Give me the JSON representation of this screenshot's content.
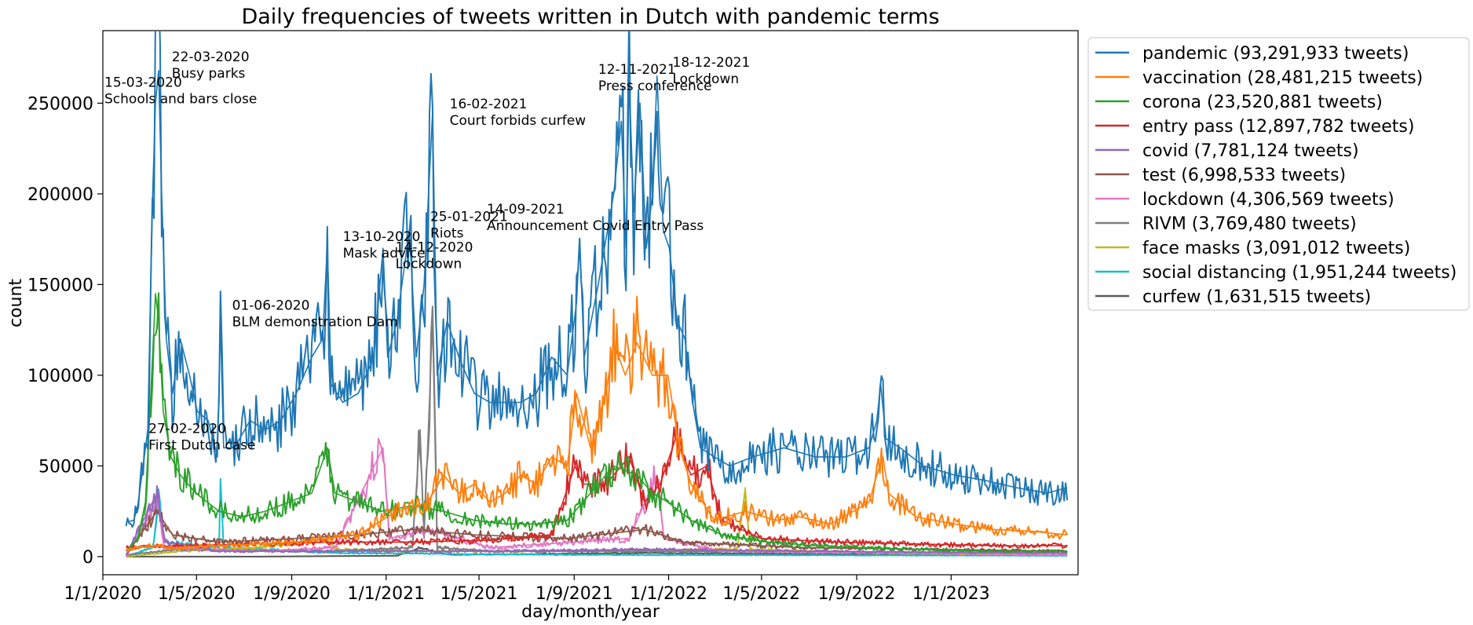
{
  "chart_data": {
    "type": "line",
    "title": "Daily frequencies of tweets written in Dutch with pandemic terms",
    "xlabel": "day/month/year",
    "ylabel": "count",
    "x_range_days": [
      0,
      1260
    ],
    "ylim": [
      -10000,
      290000
    ],
    "x_ticks": [
      {
        "day": 0,
        "label": "1/1/2020"
      },
      {
        "day": 121,
        "label": "1/5/2020"
      },
      {
        "day": 244,
        "label": "1/9/2020"
      },
      {
        "day": 366,
        "label": "1/1/2021"
      },
      {
        "day": 486,
        "label": "1/5/2021"
      },
      {
        "day": 609,
        "label": "1/9/2021"
      },
      {
        "day": 731,
        "label": "1/1/2022"
      },
      {
        "day": 851,
        "label": "1/5/2022"
      },
      {
        "day": 974,
        "label": "1/9/2022"
      },
      {
        "day": 1096,
        "label": "1/1/2023"
      }
    ],
    "y_ticks": [
      0,
      50000,
      100000,
      150000,
      200000,
      250000
    ],
    "x_start_day": 30,
    "x_end_day": 1246,
    "series": [
      {
        "name": "pandemic (93,291,933 tweets)",
        "color": "#1f77b4",
        "anchors": [
          [
            30,
            19000
          ],
          [
            40,
            20000
          ],
          [
            45,
            28000
          ],
          [
            52,
            50000
          ],
          [
            58,
            70000
          ],
          [
            64,
            195000
          ],
          [
            68,
            250000
          ],
          [
            72,
            268000
          ],
          [
            76,
            200000
          ],
          [
            82,
            120000
          ],
          [
            90,
            90000
          ],
          [
            100,
            120000
          ],
          [
            112,
            100000
          ],
          [
            122,
            80000
          ],
          [
            136,
            75000
          ],
          [
            148,
            55000
          ],
          [
            152,
            130000
          ],
          [
            156,
            60000
          ],
          [
            170,
            60000
          ],
          [
            190,
            75000
          ],
          [
            210,
            70000
          ],
          [
            230,
            75000
          ],
          [
            250,
            90000
          ],
          [
            270,
            110000
          ],
          [
            284,
            120000
          ],
          [
            290,
            172000
          ],
          [
            295,
            95000
          ],
          [
            310,
            85000
          ],
          [
            330,
            90000
          ],
          [
            350,
            110000
          ],
          [
            362,
            170000
          ],
          [
            368,
            110000
          ],
          [
            380,
            130000
          ],
          [
            396,
            180000
          ],
          [
            405,
            110000
          ],
          [
            415,
            150000
          ],
          [
            426,
            245000
          ],
          [
            432,
            100000
          ],
          [
            445,
            130000
          ],
          [
            460,
            110000
          ],
          [
            480,
            90000
          ],
          [
            500,
            85000
          ],
          [
            520,
            85000
          ],
          [
            540,
            85000
          ],
          [
            560,
            90000
          ],
          [
            580,
            110000
          ],
          [
            600,
            100000
          ],
          [
            612,
            140000
          ],
          [
            616,
            175000
          ],
          [
            622,
            110000
          ],
          [
            640,
            150000
          ],
          [
            660,
            200000
          ],
          [
            670,
            240000
          ],
          [
            676,
            170000
          ],
          [
            680,
            262000
          ],
          [
            686,
            190000
          ],
          [
            694,
            250000
          ],
          [
            702,
            170000
          ],
          [
            710,
            200000
          ],
          [
            716,
            265000
          ],
          [
            724,
            180000
          ],
          [
            732,
            170000
          ],
          [
            742,
            130000
          ],
          [
            752,
            120000
          ],
          [
            762,
            85000
          ],
          [
            772,
            60000
          ],
          [
            790,
            55000
          ],
          [
            810,
            50000
          ],
          [
            840,
            55000
          ],
          [
            880,
            60000
          ],
          [
            920,
            55000
          ],
          [
            960,
            55000
          ],
          [
            990,
            60000
          ],
          [
            1000,
            75000
          ],
          [
            1005,
            95000
          ],
          [
            1012,
            65000
          ],
          [
            1030,
            60000
          ],
          [
            1060,
            50000
          ],
          [
            1100,
            45000
          ],
          [
            1140,
            42000
          ],
          [
            1180,
            38000
          ],
          [
            1220,
            35000
          ],
          [
            1246,
            38000
          ]
        ]
      },
      {
        "name": "vaccination (28,481,215 tweets)",
        "color": "#ff7f0e",
        "anchors": [
          [
            30,
            4000
          ],
          [
            60,
            6000
          ],
          [
            90,
            5000
          ],
          [
            150,
            6000
          ],
          [
            250,
            8000
          ],
          [
            330,
            12000
          ],
          [
            380,
            25000
          ],
          [
            420,
            30000
          ],
          [
            440,
            45000
          ],
          [
            460,
            35000
          ],
          [
            480,
            40000
          ],
          [
            500,
            30000
          ],
          [
            520,
            35000
          ],
          [
            540,
            45000
          ],
          [
            560,
            40000
          ],
          [
            580,
            55000
          ],
          [
            600,
            50000
          ],
          [
            612,
            90000
          ],
          [
            630,
            60000
          ],
          [
            650,
            90000
          ],
          [
            660,
            118000
          ],
          [
            675,
            100000
          ],
          [
            690,
            118000
          ],
          [
            710,
            100000
          ],
          [
            730,
            100000
          ],
          [
            745,
            60000
          ],
          [
            760,
            40000
          ],
          [
            790,
            20000
          ],
          [
            830,
            25000
          ],
          [
            870,
            20000
          ],
          [
            900,
            22000
          ],
          [
            940,
            18000
          ],
          [
            970,
            25000
          ],
          [
            990,
            30000
          ],
          [
            1000,
            45000
          ],
          [
            1008,
            55000
          ],
          [
            1015,
            35000
          ],
          [
            1050,
            22000
          ],
          [
            1100,
            18000
          ],
          [
            1150,
            15000
          ],
          [
            1200,
            14000
          ],
          [
            1246,
            12000
          ]
        ]
      },
      {
        "name": "corona (23,520,881 tweets)",
        "color": "#2ca02c",
        "anchors": [
          [
            30,
            3000
          ],
          [
            45,
            10000
          ],
          [
            55,
            30000
          ],
          [
            62,
            90000
          ],
          [
            68,
            145000
          ],
          [
            72,
            130000
          ],
          [
            78,
            80000
          ],
          [
            88,
            55000
          ],
          [
            100,
            45000
          ],
          [
            120,
            35000
          ],
          [
            150,
            25000
          ],
          [
            180,
            22000
          ],
          [
            210,
            25000
          ],
          [
            240,
            30000
          ],
          [
            270,
            35000
          ],
          [
            290,
            60000
          ],
          [
            300,
            35000
          ],
          [
            330,
            30000
          ],
          [
            360,
            25000
          ],
          [
            400,
            28000
          ],
          [
            440,
            25000
          ],
          [
            480,
            20000
          ],
          [
            520,
            18000
          ],
          [
            560,
            18000
          ],
          [
            600,
            20000
          ],
          [
            640,
            40000
          ],
          [
            660,
            50000
          ],
          [
            690,
            45000
          ],
          [
            710,
            35000
          ],
          [
            730,
            30000
          ],
          [
            760,
            20000
          ],
          [
            800,
            12000
          ],
          [
            860,
            8000
          ],
          [
            920,
            6000
          ],
          [
            980,
            5000
          ],
          [
            1050,
            4000
          ],
          [
            1150,
            3000
          ],
          [
            1246,
            3000
          ]
        ]
      },
      {
        "name": "entry pass (12,897,782 tweets)",
        "color": "#d62728",
        "anchors": [
          [
            30,
            5000
          ],
          [
            100,
            6000
          ],
          [
            200,
            7000
          ],
          [
            300,
            8000
          ],
          [
            400,
            8000
          ],
          [
            500,
            9000
          ],
          [
            580,
            12000
          ],
          [
            610,
            50000
          ],
          [
            620,
            40000
          ],
          [
            650,
            40000
          ],
          [
            680,
            55000
          ],
          [
            700,
            30000
          ],
          [
            720,
            40000
          ],
          [
            740,
            65000
          ],
          [
            760,
            45000
          ],
          [
            780,
            50000
          ],
          [
            800,
            20000
          ],
          [
            850,
            10000
          ],
          [
            950,
            8000
          ],
          [
            1050,
            7000
          ],
          [
            1150,
            6000
          ],
          [
            1246,
            6000
          ]
        ]
      },
      {
        "name": "covid (7,781,124 tweets)",
        "color": "#9467bd",
        "anchors": [
          [
            30,
            1000
          ],
          [
            70,
            35000
          ],
          [
            80,
            8000
          ],
          [
            150,
            3000
          ],
          [
            300,
            3000
          ],
          [
            500,
            3000
          ],
          [
            700,
            4000
          ],
          [
            900,
            3000
          ],
          [
            1246,
            2000
          ]
        ]
      },
      {
        "name": "test (6,998,533 tweets)",
        "color": "#8c564b",
        "anchors": [
          [
            30,
            1000
          ],
          [
            70,
            25000
          ],
          [
            90,
            12000
          ],
          [
            150,
            8000
          ],
          [
            250,
            10000
          ],
          [
            330,
            12000
          ],
          [
            400,
            15000
          ],
          [
            480,
            12000
          ],
          [
            600,
            10000
          ],
          [
            700,
            15000
          ],
          [
            750,
            8000
          ],
          [
            900,
            5000
          ],
          [
            1246,
            3000
          ]
        ]
      },
      {
        "name": "lockdown (4,306,569 tweets)",
        "color": "#e377c2",
        "anchors": [
          [
            30,
            0
          ],
          [
            70,
            30000
          ],
          [
            80,
            5000
          ],
          [
            200,
            3000
          ],
          [
            300,
            5000
          ],
          [
            362,
            60000
          ],
          [
            370,
            10000
          ],
          [
            420,
            15000
          ],
          [
            500,
            5000
          ],
          [
            680,
            10000
          ],
          [
            716,
            45000
          ],
          [
            725,
            10000
          ],
          [
            800,
            3000
          ],
          [
            1246,
            1000
          ]
        ]
      },
      {
        "name": "RIVM (3,769,480 tweets)",
        "color": "#7f7f7f",
        "anchors": [
          [
            30,
            1000
          ],
          [
            100,
            4000
          ],
          [
            200,
            3000
          ],
          [
            300,
            3000
          ],
          [
            400,
            5000
          ],
          [
            410,
            70000
          ],
          [
            415,
            10000
          ],
          [
            426,
            130000
          ],
          [
            432,
            5000
          ],
          [
            500,
            3000
          ],
          [
            700,
            3000
          ],
          [
            1246,
            2000
          ]
        ]
      },
      {
        "name": "face masks (3,091,012 tweets)",
        "color": "#bcbd22",
        "anchors": [
          [
            30,
            0
          ],
          [
            100,
            3000
          ],
          [
            200,
            5000
          ],
          [
            290,
            10000
          ],
          [
            300,
            4000
          ],
          [
            400,
            3000
          ],
          [
            600,
            3000
          ],
          [
            820,
            4000
          ],
          [
            830,
            38000
          ],
          [
            836,
            4000
          ],
          [
            1000,
            2000
          ],
          [
            1246,
            1000
          ]
        ]
      },
      {
        "name": "social distancing (1,951,244 tweets)",
        "color": "#17becf",
        "anchors": [
          [
            30,
            0
          ],
          [
            65,
            5000
          ],
          [
            72,
            35000
          ],
          [
            80,
            8000
          ],
          [
            150,
            5000
          ],
          [
            152,
            40000
          ],
          [
            156,
            5000
          ],
          [
            300,
            2000
          ],
          [
            600,
            1000
          ],
          [
            1246,
            500
          ]
        ]
      },
      {
        "name": "curfew (1,631,515 tweets)",
        "color": "#595959",
        "anchors": [
          [
            30,
            0
          ],
          [
            200,
            0
          ],
          [
            380,
            500
          ],
          [
            410,
            5000
          ],
          [
            426,
            3000
          ],
          [
            450,
            1000
          ],
          [
            700,
            2000
          ],
          [
            1246,
            500
          ]
        ]
      }
    ],
    "annotations": [
      {
        "date": "27-02-2020",
        "text": "First Dutch case",
        "day": 57,
        "value": 59000
      },
      {
        "date": "15-03-2020",
        "text": "Schools and bars close",
        "day": 0,
        "value": 250000
      },
      {
        "date": "22-03-2020",
        "text": "Busy parks",
        "day": 87,
        "value": 264000
      },
      {
        "date": "01-06-2020",
        "text": "BLM demonstration Dam",
        "day": 165,
        "value": 127000
      },
      {
        "date": "13-10-2020",
        "text": "Mask advice",
        "day": 308,
        "value": 165000
      },
      {
        "date": "14-12-2020",
        "text": "Lockdown",
        "day": 376,
        "value": 159000
      },
      {
        "date": "25-01-2021",
        "text": "Riots",
        "day": 421,
        "value": 176000
      },
      {
        "date": "16-02-2021",
        "text": "Court forbids curfew",
        "day": 446,
        "value": 238000
      },
      {
        "date": "14-09-2021",
        "text": "Announcement Covid Entry Pass",
        "day": 494,
        "value": 180000
      },
      {
        "date": "12-11-2021",
        "text": "Press conference",
        "day": 638,
        "value": 257000
      },
      {
        "date": "18-12-2021",
        "text": "Lockdown",
        "day": 734,
        "value": 261000
      }
    ],
    "legend_position": "outside-right"
  }
}
